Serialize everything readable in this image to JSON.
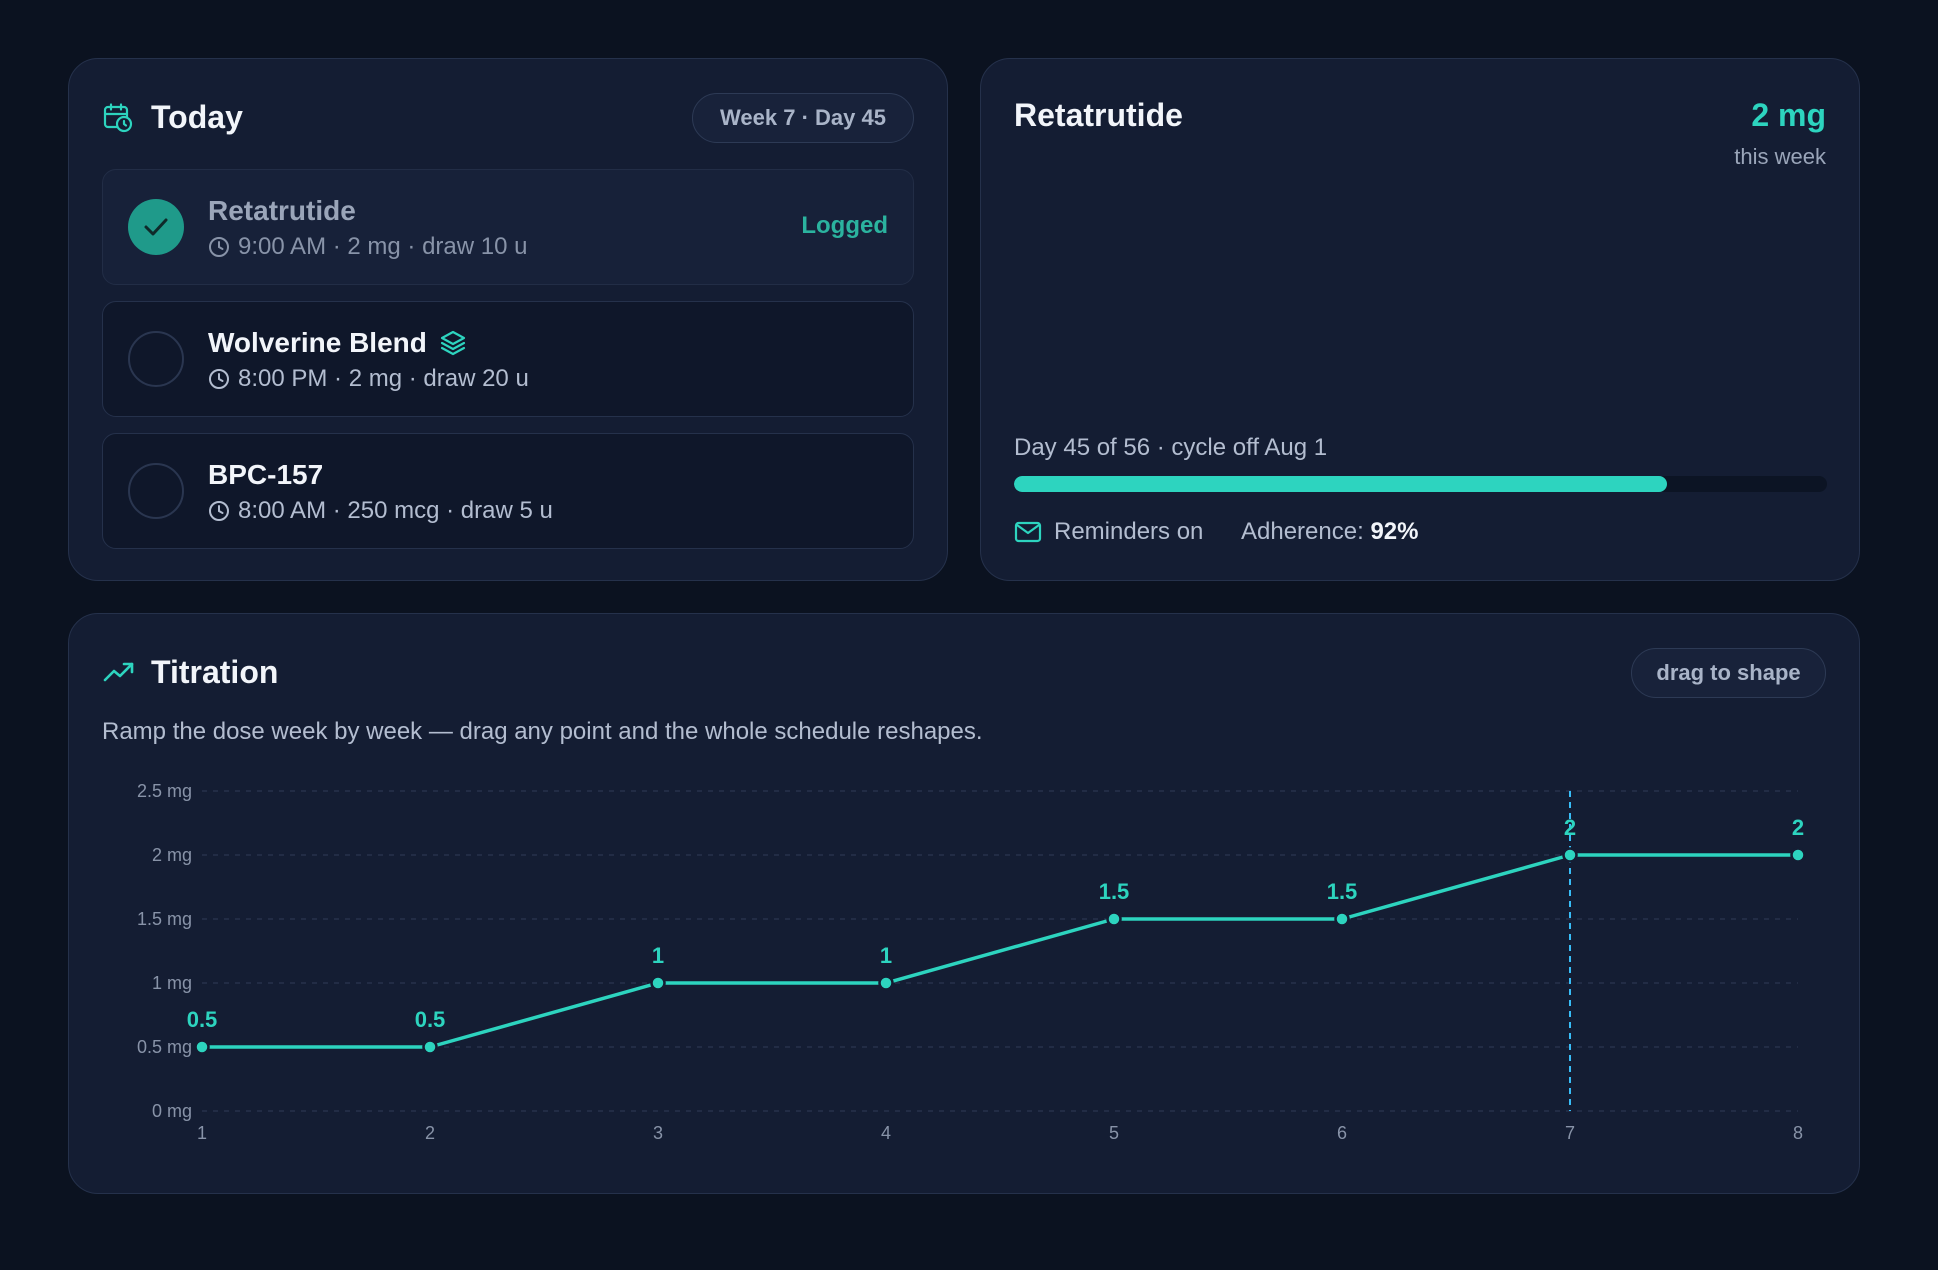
{
  "today": {
    "title": "Today",
    "badge": "Week 7 · Day 45",
    "doses": [
      {
        "name": "Retatrutide",
        "meta": "9:00 AM · 2 mg · draw 10 u",
        "status": "Logged",
        "logged": true
      },
      {
        "name": "Wolverine Blend",
        "meta": "8:00 PM · 2 mg · draw 20 u",
        "logged": false,
        "icon": "layers-icon"
      },
      {
        "name": "BPC-157",
        "meta": "8:00 AM · 250 mcg · draw 5 u",
        "logged": false
      }
    ]
  },
  "summary": {
    "title": "Retatrutide",
    "dose": "2 mg",
    "dose_caption": "this week",
    "cycle_text": "Day 45 of 56 · cycle off Aug 1",
    "progress_fraction": 0.8036,
    "reminders": "Reminders on",
    "adherence_label": "Adherence:",
    "adherence_value": "92%"
  },
  "titration": {
    "title": "Titration",
    "pill": "drag to shape",
    "description": "Ramp the dose week by week — drag any point and the whole schedule reshapes."
  },
  "chart_data": {
    "type": "line",
    "x": [
      1,
      2,
      3,
      4,
      5,
      6,
      7,
      8
    ],
    "values": [
      0.5,
      0.5,
      1,
      1,
      1.5,
      1.5,
      2,
      2
    ],
    "data_labels": [
      "0.5",
      "0.5",
      "1",
      "1",
      "1.5",
      "1.5",
      "2",
      "2"
    ],
    "yticks": [
      0,
      0.5,
      1,
      1.5,
      2,
      2.5
    ],
    "ytick_labels": [
      "0 mg",
      "0.5 mg",
      "1 mg",
      "1.5 mg",
      "2 mg",
      "2.5 mg"
    ],
    "xtick_labels": [
      "1",
      "2",
      "3",
      "4",
      "5",
      "6",
      "7",
      "8"
    ],
    "ylim": [
      0,
      2.5
    ],
    "xlim": [
      1,
      8
    ],
    "current_week": 7,
    "grid": true,
    "line_color": "#2dd4bf",
    "marker_line_color": "#38bdf8"
  },
  "colors": {
    "accent": "#2dd4bf",
    "card": "#141d33",
    "background": "#0b1220"
  }
}
